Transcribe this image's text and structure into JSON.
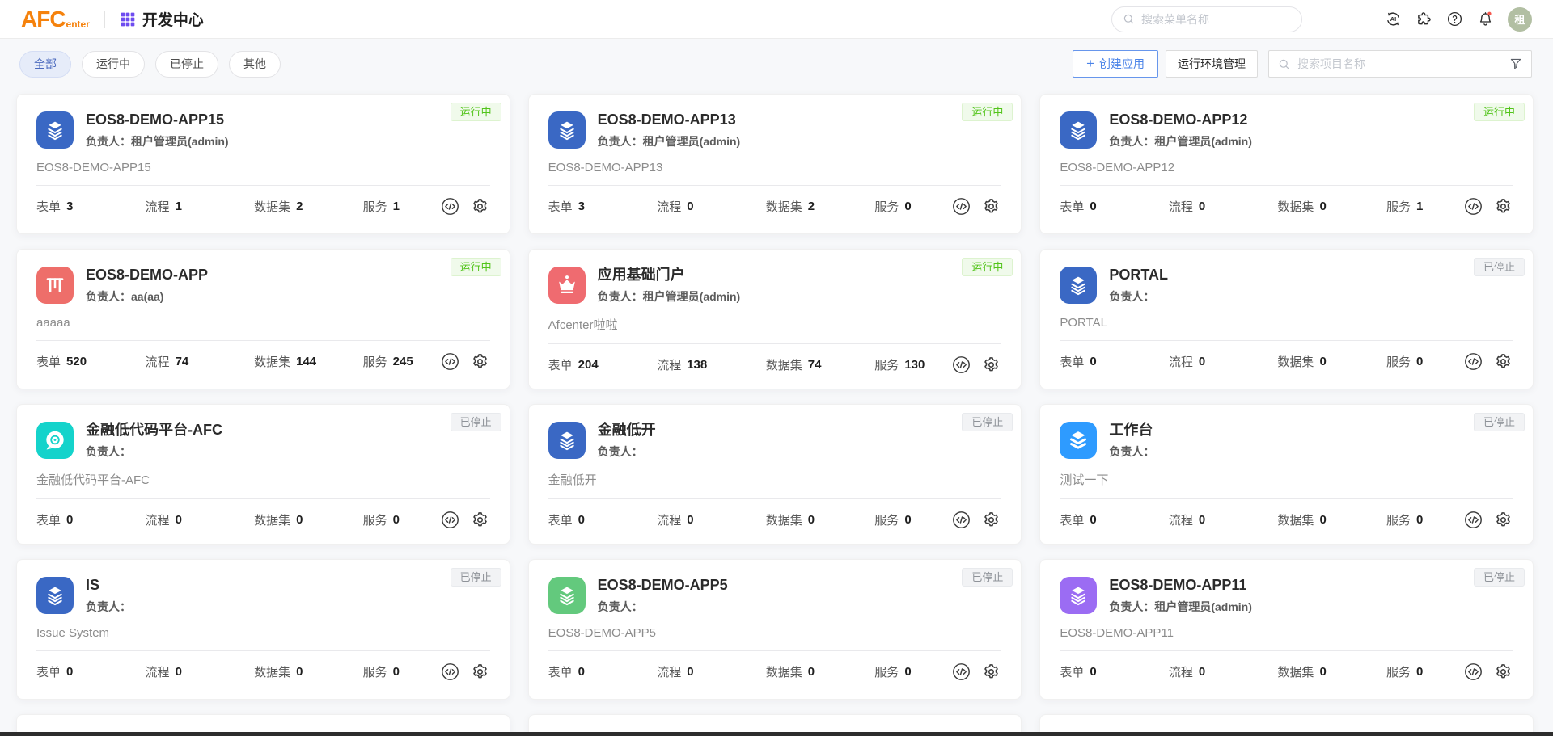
{
  "header": {
    "logo_main": "AFC",
    "logo_sub": "enter",
    "app_title": "开发中心",
    "search_placeholder": "搜索菜单名称",
    "avatar_text": "租"
  },
  "filters": [
    {
      "label": "全部",
      "active": true
    },
    {
      "label": "运行中",
      "active": false
    },
    {
      "label": "已停止",
      "active": false
    },
    {
      "label": "其他",
      "active": false
    }
  ],
  "toolbar": {
    "create_label": "创建应用",
    "env_label": "运行环境管理",
    "search_placeholder": "搜索项目名称"
  },
  "labels": {
    "owner": "负责人：",
    "form": "表单",
    "flow": "流程",
    "dataset": "数据集",
    "service": "服务"
  },
  "statuses": {
    "running": "运行中",
    "stopped": "已停止"
  },
  "colors": {
    "brand_orange": "#f5820d",
    "grid_purple": "#6e4cf0",
    "accent_blue": "#4a83e8",
    "running_green": "#52c41a",
    "stopped_gray": "#8f9399",
    "avatar_green": "#b2bfa3"
  },
  "apps": [
    {
      "name": "EOS8-DEMO-APP15",
      "owner": "租户管理员(admin)",
      "desc": "EOS8-DEMO-APP15",
      "form": 3,
      "flow": 1,
      "dataset": 2,
      "service": 1,
      "status": "running",
      "icon": "layers",
      "icon_color": "#3a68c4"
    },
    {
      "name": "EOS8-DEMO-APP13",
      "owner": "租户管理员(admin)",
      "desc": "EOS8-DEMO-APP13",
      "form": 3,
      "flow": 0,
      "dataset": 2,
      "service": 0,
      "status": "running",
      "icon": "layers",
      "icon_color": "#3a68c4"
    },
    {
      "name": "EOS8-DEMO-APP12",
      "owner": "租户管理员(admin)",
      "desc": "EOS8-DEMO-APP12",
      "form": 0,
      "flow": 0,
      "dataset": 0,
      "service": 1,
      "status": "running",
      "icon": "layers",
      "icon_color": "#3a68c4"
    },
    {
      "name": "EOS8-DEMO-APP",
      "owner": "aa(aa)",
      "desc": "aaaaa",
      "form": 520,
      "flow": 74,
      "dataset": 144,
      "service": 245,
      "status": "running",
      "icon": "shelf",
      "icon_color": "#ee6e6a"
    },
    {
      "name": "应用基础门户",
      "owner": "租户管理员(admin)",
      "desc": "Afcenter啦啦",
      "form": 204,
      "flow": 138,
      "dataset": 74,
      "service": 130,
      "status": "running",
      "icon": "crown",
      "icon_color": "#ef6b70"
    },
    {
      "name": "PORTAL",
      "owner": "",
      "desc": "PORTAL",
      "form": 0,
      "flow": 0,
      "dataset": 0,
      "service": 0,
      "status": "stopped",
      "icon": "layers",
      "icon_color": "#3a68c4"
    },
    {
      "name": "金融低代码平台-AFC",
      "owner": "",
      "desc": "金融低代码平台-AFC",
      "form": 0,
      "flow": 0,
      "dataset": 0,
      "service": 0,
      "status": "stopped",
      "icon": "chat",
      "icon_color": "#14d3cb"
    },
    {
      "name": "金融低开",
      "owner": "",
      "desc": "金融低开",
      "form": 0,
      "flow": 0,
      "dataset": 0,
      "service": 0,
      "status": "stopped",
      "icon": "layers",
      "icon_color": "#3a68c4"
    },
    {
      "name": "工作台",
      "owner": "",
      "desc": "测试一下",
      "form": 0,
      "flow": 0,
      "dataset": 0,
      "service": 0,
      "status": "stopped",
      "icon": "layers-bold",
      "icon_color": "#2e9bff"
    },
    {
      "name": "IS",
      "owner": "",
      "desc": "Issue System",
      "form": 0,
      "flow": 0,
      "dataset": 0,
      "service": 0,
      "status": "stopped",
      "icon": "layers",
      "icon_color": "#3a68c4"
    },
    {
      "name": "EOS8-DEMO-APP5",
      "owner": "",
      "desc": "EOS8-DEMO-APP5",
      "form": 0,
      "flow": 0,
      "dataset": 0,
      "service": 0,
      "status": "stopped",
      "icon": "layers",
      "icon_color": "#63c97d"
    },
    {
      "name": "EOS8-DEMO-APP11",
      "owner": "租户管理员(admin)",
      "desc": "EOS8-DEMO-APP11",
      "form": 0,
      "flow": 0,
      "dataset": 0,
      "service": 0,
      "status": "stopped",
      "icon": "layers",
      "icon_color": "#9b6cf3"
    }
  ]
}
